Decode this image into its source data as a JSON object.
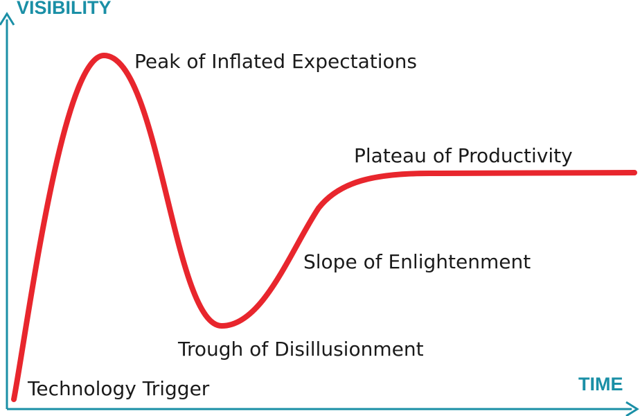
{
  "axes": {
    "y_title": "VISIBILITY",
    "x_title": "TIME",
    "axis_color": "#1a8fa6"
  },
  "curve": {
    "color": "#e8262d"
  },
  "phases": [
    {
      "id": "technology-trigger",
      "label": "Technology Trigger"
    },
    {
      "id": "peak",
      "label": "Peak of Inflated Expectations"
    },
    {
      "id": "trough",
      "label": "Trough of Disillusionment"
    },
    {
      "id": "slope",
      "label": "Slope of Enlightenment"
    },
    {
      "id": "plateau",
      "label": "Plateau of Productivity"
    }
  ]
}
